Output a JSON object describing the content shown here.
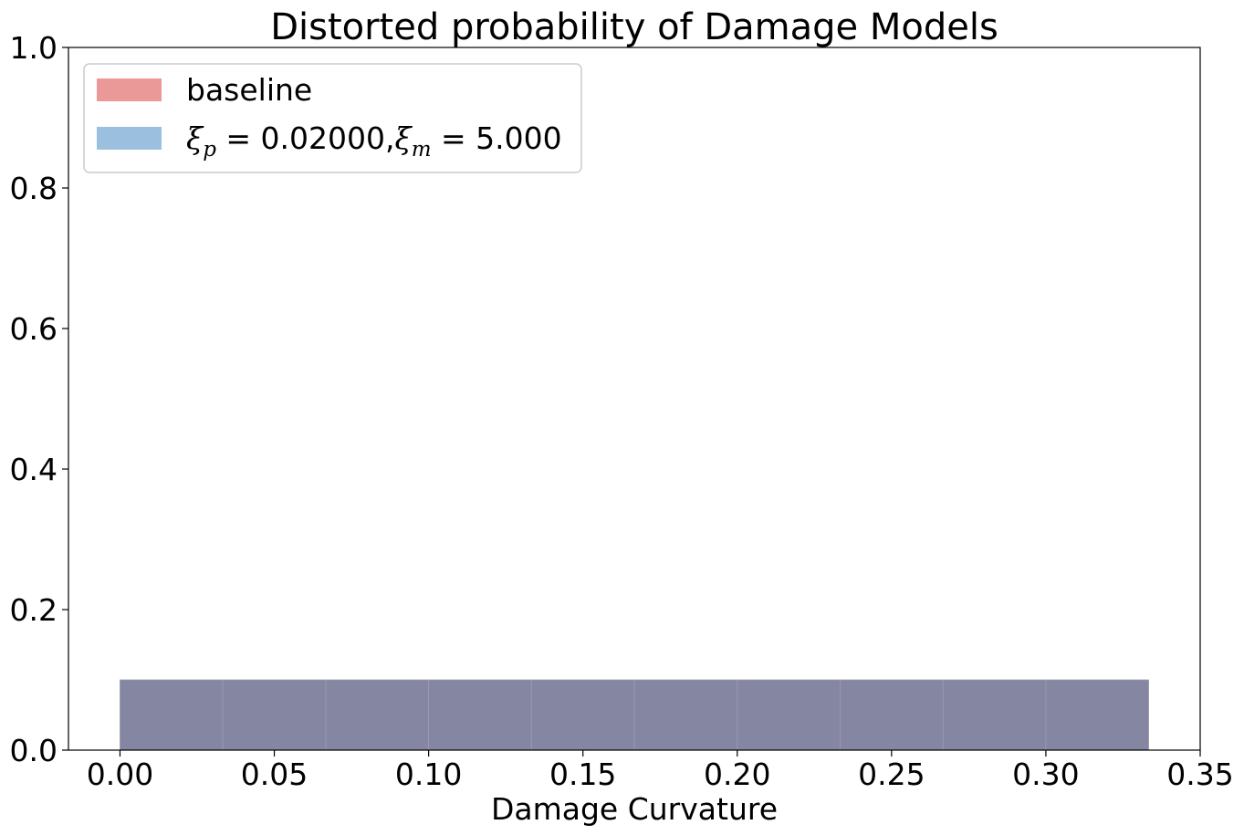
{
  "chart_data": {
    "type": "bar",
    "title": "Distorted probability of Damage Models",
    "xlabel": "Damage Curvature",
    "ylabel": "",
    "xlim": [
      -0.0167,
      0.35
    ],
    "ylim": [
      0,
      1.0
    ],
    "xticks": [
      "0.00",
      "0.05",
      "0.10",
      "0.15",
      "0.20",
      "0.25",
      "0.30",
      "0.35"
    ],
    "yticks": [
      "0.0",
      "0.2",
      "0.4",
      "0.6",
      "0.8",
      "1.0"
    ],
    "bin_edges": [
      0.0,
      0.0333,
      0.0667,
      0.1,
      0.1333,
      0.1667,
      0.2,
      0.2333,
      0.2667,
      0.3,
      0.3333
    ],
    "series": [
      {
        "name": "baseline",
        "color": "#e88d8d",
        "values": [
          0.1,
          0.1,
          0.1,
          0.1,
          0.1,
          0.1,
          0.1,
          0.1,
          0.1,
          0.1
        ]
      },
      {
        "name": "ξp = 0.02000,ξm = 5.000",
        "color": "#8fb8db",
        "values": [
          0.1,
          0.1,
          0.1,
          0.1,
          0.1,
          0.1,
          0.1,
          0.1,
          0.1,
          0.1
        ]
      }
    ],
    "overlap_color": "#8586a2",
    "grid": false,
    "legend_position": "top-left"
  }
}
